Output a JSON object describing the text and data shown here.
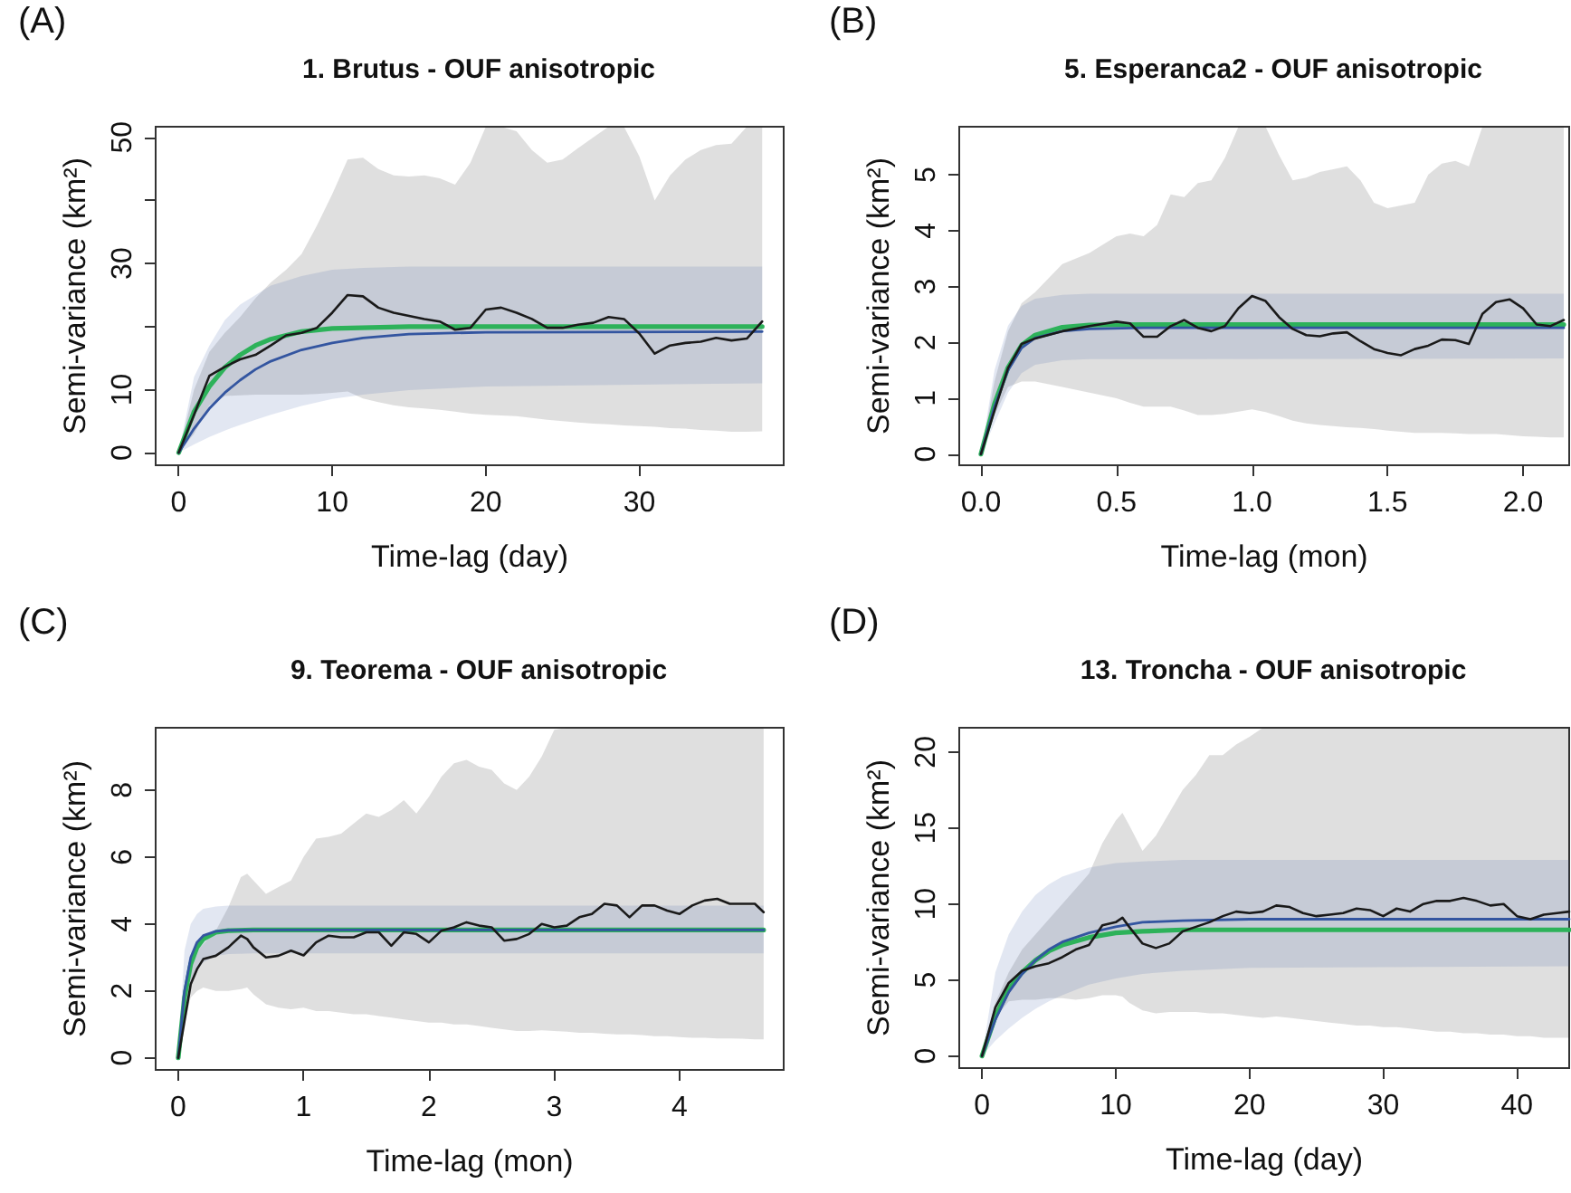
{
  "chart_data": [
    {
      "type": "line",
      "title": "1. Brutus - OUF anisotropic",
      "xlabel": "Time-lag (day)",
      "ylabel": "Semi-variance (km²)",
      "annotations": [
        "(A)"
      ],
      "marker": "none",
      "xlim": [
        -1.5,
        39.4
      ],
      "ylim": [
        -2,
        51.7
      ],
      "xticks": [
        0,
        10,
        20,
        30
      ],
      "yticks": [
        0,
        10,
        {
          "value": 20,
          "label": null
        },
        30,
        {
          "value": 40,
          "label": null
        },
        50
      ],
      "series": [
        {
          "color": "#1a1a1a",
          "x": [
            0,
            1,
            2,
            3,
            4,
            5,
            6,
            7,
            8,
            9,
            10,
            11,
            12,
            13,
            14,
            15,
            16,
            17,
            18,
            19,
            20,
            21,
            22,
            23,
            24,
            25,
            26,
            27,
            28,
            29,
            30,
            31,
            32,
            33,
            34,
            35,
            36,
            37,
            38
          ],
          "values": [
            0,
            6,
            12.2,
            13.6,
            14.8,
            15.5,
            17,
            18.6,
            19,
            19.8,
            22.2,
            25,
            24.8,
            23,
            22.2,
            21.7,
            21.2,
            20.8,
            19.5,
            19.8,
            22.7,
            23,
            22.2,
            21.2,
            19.8,
            19.8,
            20.3,
            20.6,
            21.5,
            21.2,
            18.9,
            15.7,
            17,
            17.4,
            17.6,
            18.2,
            17.8,
            18.1,
            20.8
          ],
          "lower": [
            0,
            3,
            7.5,
            9,
            9.1,
            9.2,
            9.2,
            9.2,
            9.2,
            9.3,
            9.5,
            9.7,
            8.6,
            8,
            7.5,
            7.2,
            7,
            6.8,
            6.5,
            6.2,
            6,
            5.9,
            5.8,
            5.5,
            5.2,
            5,
            4.8,
            4.6,
            4.5,
            4.3,
            4.2,
            4.1,
            3.9,
            3.8,
            3.6,
            3.5,
            3.3,
            3.3,
            3.4
          ],
          "upper": [
            0,
            10,
            16,
            19,
            21.5,
            24.5,
            27,
            29,
            31.5,
            36,
            41,
            46.5,
            46.8,
            45,
            44,
            43.8,
            44,
            43.5,
            42.5,
            46,
            51.7,
            51.7,
            51,
            48,
            46,
            46.5,
            48.3,
            50,
            51.7,
            51.7,
            47,
            40,
            44,
            46.5,
            48,
            48.8,
            49,
            51.7,
            51.7
          ]
        },
        {
          "color": "#2db25a",
          "x": [
            0,
            1,
            2,
            3,
            4,
            5,
            6,
            8,
            10,
            15,
            38
          ],
          "values": [
            0,
            6.5,
            10.5,
            13.5,
            15.5,
            17,
            18,
            19.2,
            19.7,
            20,
            20
          ]
        },
        {
          "color": "#3355a0",
          "x": [
            0,
            1,
            2,
            3,
            4,
            5,
            6,
            8,
            10,
            12,
            15,
            20,
            38
          ],
          "values": [
            0,
            3.8,
            7,
            9.5,
            11.5,
            13.2,
            14.5,
            16.3,
            17.4,
            18.2,
            18.8,
            19.1,
            19.2
          ],
          "lower": [
            0,
            1.3,
            2.5,
            3.5,
            4.4,
            5.2,
            6,
            7.4,
            8.5,
            9.2,
            9.9,
            10.5,
            11
          ],
          "upper": [
            0,
            12,
            17,
            21,
            23.5,
            25,
            26.5,
            28,
            29,
            29.3,
            29.5,
            29.5,
            29.5
          ]
        }
      ]
    },
    {
      "type": "line",
      "title": "5. Esperanca2 - OUF anisotropic",
      "xlabel": "Time-lag (mon)",
      "ylabel": "Semi-variance (km²)",
      "annotations": [
        "(B)"
      ],
      "marker": "none",
      "xlim": [
        -0.08,
        2.17
      ],
      "ylim": [
        -0.2,
        5.86
      ],
      "xticks": [
        {
          "value": 0,
          "label": "0.0"
        },
        0.5,
        {
          "value": 1,
          "label": "1.0"
        },
        1.5,
        {
          "value": 2,
          "label": "2.0"
        }
      ],
      "yticks": [
        0,
        1,
        2,
        3,
        4,
        5
      ],
      "series": [
        {
          "color": "#1a1a1a",
          "x": [
            0,
            0.05,
            0.1,
            0.15,
            0.2,
            0.3,
            0.4,
            0.5,
            0.55,
            0.6,
            0.65,
            0.7,
            0.75,
            0.8,
            0.85,
            0.9,
            0.95,
            1,
            1.05,
            1.1,
            1.15,
            1.2,
            1.25,
            1.3,
            1.35,
            1.4,
            1.45,
            1.5,
            1.55,
            1.6,
            1.65,
            1.7,
            1.75,
            1.8,
            1.85,
            1.9,
            1.95,
            2,
            2.05,
            2.1,
            2.15
          ],
          "values": [
            0,
            0.78,
            1.54,
            1.97,
            2.07,
            2.2,
            2.29,
            2.37,
            2.34,
            2.1,
            2.1,
            2.29,
            2.4,
            2.26,
            2.2,
            2.29,
            2.61,
            2.83,
            2.74,
            2.45,
            2.24,
            2.13,
            2.11,
            2.16,
            2.18,
            2.02,
            1.88,
            1.81,
            1.77,
            1.88,
            1.94,
            2.05,
            2.04,
            1.97,
            2.51,
            2.72,
            2.77,
            2.61,
            2.32,
            2.29,
            2.4
          ],
          "lower": [
            0,
            0.7,
            1.2,
            1.3,
            1.3,
            1.2,
            1.1,
            1.0,
            0.92,
            0.85,
            0.85,
            0.85,
            0.78,
            0.7,
            0.7,
            0.72,
            0.76,
            0.8,
            0.75,
            0.68,
            0.6,
            0.55,
            0.52,
            0.5,
            0.48,
            0.47,
            0.45,
            0.42,
            0.4,
            0.38,
            0.38,
            0.38,
            0.37,
            0.36,
            0.36,
            0.36,
            0.34,
            0.32,
            0.31,
            0.3,
            0.3
          ],
          "upper": [
            0,
            1.3,
            2.2,
            2.7,
            2.9,
            3.4,
            3.6,
            3.9,
            3.95,
            3.9,
            4.1,
            4.65,
            4.6,
            4.85,
            4.9,
            5.3,
            5.86,
            5.86,
            5.86,
            5.35,
            4.9,
            4.95,
            5.05,
            5.1,
            5.15,
            4.9,
            4.5,
            4.4,
            4.45,
            4.5,
            5.0,
            5.2,
            5.25,
            5.15,
            5.86,
            5.86,
            5.86,
            5.86,
            5.86,
            5.86,
            5.86
          ]
        },
        {
          "color": "#2db25a",
          "x": [
            0,
            0.05,
            0.1,
            0.15,
            0.2,
            0.3,
            0.4,
            0.6,
            2.15
          ],
          "values": [
            0,
            0.9,
            1.55,
            1.95,
            2.13,
            2.27,
            2.31,
            2.32,
            2.32
          ]
        },
        {
          "color": "#3355a0",
          "x": [
            0,
            0.05,
            0.1,
            0.15,
            0.2,
            0.3,
            0.4,
            0.6,
            2.15
          ],
          "values": [
            0,
            0.85,
            1.5,
            1.9,
            2.08,
            2.2,
            2.24,
            2.26,
            2.26
          ],
          "lower": [
            0,
            0.55,
            1.1,
            1.45,
            1.6,
            1.68,
            1.7,
            1.7,
            1.71
          ],
          "upper": [
            0,
            1.5,
            2.3,
            2.65,
            2.78,
            2.85,
            2.87,
            2.87,
            2.87
          ]
        }
      ]
    },
    {
      "type": "line",
      "title": "9. Teorema - OUF anisotropic",
      "xlabel": "Time-lag (mon)",
      "ylabel": "Semi-variance (km²)",
      "annotations": [
        "(C)"
      ],
      "marker": "none",
      "xlim": [
        -0.18,
        4.83
      ],
      "ylim": [
        -0.36,
        9.86
      ],
      "xticks": [
        0,
        1,
        2,
        3,
        4
      ],
      "yticks": [
        0,
        2,
        4,
        6,
        8
      ],
      "series": [
        {
          "color": "#1a1a1a",
          "x": [
            0,
            0.05,
            0.1,
            0.15,
            0.2,
            0.3,
            0.4,
            0.5,
            0.55,
            0.6,
            0.7,
            0.8,
            0.9,
            1,
            1.1,
            1.2,
            1.3,
            1.4,
            1.5,
            1.6,
            1.7,
            1.8,
            1.9,
            2,
            2.1,
            2.2,
            2.3,
            2.4,
            2.5,
            2.6,
            2.7,
            2.8,
            2.9,
            3,
            3.1,
            3.2,
            3.3,
            3.4,
            3.5,
            3.6,
            3.7,
            3.8,
            3.9,
            4,
            4.1,
            4.2,
            4.3,
            4.4,
            4.5,
            4.6,
            4.67
          ],
          "values": [
            0,
            1.1,
            2.2,
            2.65,
            2.95,
            3.05,
            3.3,
            3.65,
            3.55,
            3.3,
            3.0,
            3.05,
            3.2,
            3.06,
            3.45,
            3.65,
            3.6,
            3.6,
            3.75,
            3.75,
            3.35,
            3.75,
            3.7,
            3.45,
            3.8,
            3.9,
            4.05,
            3.95,
            3.9,
            3.5,
            3.55,
            3.7,
            4.0,
            3.9,
            3.95,
            4.2,
            4.3,
            4.6,
            4.55,
            4.2,
            4.55,
            4.55,
            4.4,
            4.3,
            4.55,
            4.7,
            4.75,
            4.6,
            4.6,
            4.6,
            4.35
          ],
          "lower": [
            0,
            1.0,
            1.8,
            2.0,
            2.1,
            2.0,
            2.0,
            2.05,
            2.1,
            1.9,
            1.6,
            1.5,
            1.45,
            1.5,
            1.4,
            1.4,
            1.35,
            1.3,
            1.3,
            1.25,
            1.2,
            1.15,
            1.1,
            1.05,
            1.05,
            1.0,
            1.0,
            0.95,
            0.9,
            0.85,
            0.8,
            0.8,
            0.82,
            0.8,
            0.78,
            0.75,
            0.75,
            0.72,
            0.7,
            0.7,
            0.68,
            0.65,
            0.65,
            0.62,
            0.6,
            0.6,
            0.58,
            0.58,
            0.57,
            0.55,
            0.55
          ],
          "upper": [
            0,
            1.5,
            2.6,
            3.2,
            3.4,
            3.8,
            4.5,
            5.4,
            5.5,
            5.3,
            4.9,
            5.1,
            5.3,
            6.0,
            6.55,
            6.6,
            6.7,
            7.0,
            7.3,
            7.2,
            7.4,
            7.7,
            7.3,
            7.8,
            8.4,
            8.8,
            8.9,
            8.7,
            8.6,
            8.2,
            8.0,
            8.4,
            9.0,
            9.8,
            9.86,
            9.86,
            9.86,
            9.86,
            9.86,
            9.86,
            9.86,
            9.86,
            9.86,
            9.86,
            9.86,
            9.86,
            9.86,
            9.86,
            9.86,
            9.86,
            9.86
          ]
        },
        {
          "color": "#2db25a",
          "x": [
            0,
            0.05,
            0.1,
            0.15,
            0.2,
            0.3,
            0.4,
            0.6,
            4.67
          ],
          "values": [
            0,
            1.8,
            2.8,
            3.3,
            3.55,
            3.75,
            3.8,
            3.82,
            3.82
          ]
        },
        {
          "color": "#3355a0",
          "x": [
            0,
            0.05,
            0.1,
            0.15,
            0.2,
            0.3,
            0.4,
            0.6,
            4.67
          ],
          "values": [
            0,
            2.0,
            3.0,
            3.45,
            3.65,
            3.78,
            3.81,
            3.82,
            3.82
          ],
          "lower": [
            0,
            1.3,
            2.2,
            2.6,
            2.85,
            3.05,
            3.1,
            3.12,
            3.12
          ],
          "upper": [
            0,
            3.2,
            4.0,
            4.3,
            4.45,
            4.52,
            4.55,
            4.55,
            4.55
          ]
        }
      ]
    },
    {
      "type": "line",
      "title": "13. Troncha - OUF anisotropic",
      "xlabel": "Time-lag (day)",
      "ylabel": "Semi-variance (km²)",
      "annotations": [
        "(D)"
      ],
      "marker": "none",
      "xlim": [
        -1.7,
        43.9
      ],
      "ylim": [
        -0.8,
        21.6
      ],
      "xticks": [
        0,
        10,
        20,
        30,
        40
      ],
      "yticks": [
        0,
        5,
        10,
        15,
        20
      ],
      "series": [
        {
          "color": "#1a1a1a",
          "x": [
            0,
            1,
            2,
            3,
            4,
            5,
            6,
            7,
            8,
            9,
            10,
            10.5,
            11,
            12,
            13,
            14,
            15,
            16,
            17,
            18,
            19,
            20,
            21,
            22,
            23,
            24,
            25,
            26,
            27,
            28,
            29,
            30,
            31,
            32,
            33,
            34,
            35,
            36,
            37,
            38,
            39,
            40,
            41,
            42,
            43,
            43.9
          ],
          "values": [
            0,
            3.2,
            4.8,
            5.6,
            5.9,
            6.1,
            6.5,
            7.0,
            7.3,
            8.6,
            8.8,
            9.1,
            8.5,
            7.4,
            7.1,
            7.4,
            8.2,
            8.5,
            8.8,
            9.2,
            9.5,
            9.4,
            9.5,
            9.9,
            9.8,
            9.4,
            9.2,
            9.3,
            9.4,
            9.7,
            9.6,
            9.2,
            9.7,
            9.5,
            10,
            10.2,
            10.2,
            10.4,
            10.2,
            9.9,
            10,
            9.2,
            9.0,
            9.3,
            9.4,
            9.5
          ],
          "lower": [
            0,
            2.5,
            3.6,
            3.7,
            3.7,
            3.8,
            3.8,
            3.7,
            3.8,
            4.0,
            4.0,
            3.9,
            3.5,
            3.0,
            2.8,
            2.9,
            2.9,
            2.9,
            2.8,
            2.8,
            2.7,
            2.6,
            2.5,
            2.6,
            2.5,
            2.4,
            2.3,
            2.2,
            2.1,
            2.0,
            2.0,
            1.9,
            1.9,
            1.8,
            1.7,
            1.6,
            1.6,
            1.5,
            1.5,
            1.4,
            1.4,
            1.3,
            1.3,
            1.2,
            1.2,
            1.2
          ],
          "upper": [
            0,
            3.5,
            5.5,
            7,
            8,
            9,
            10,
            11,
            12,
            14,
            15.5,
            16,
            15.2,
            13.5,
            14.5,
            16,
            17.5,
            18.5,
            19.8,
            19.8,
            20.5,
            21.0,
            21.6,
            21.6,
            21.6,
            21.6,
            21.6,
            21.6,
            21.6,
            21.6,
            21.6,
            21.6,
            21.6,
            21.6,
            21.6,
            21.6,
            21.6,
            21.6,
            21.6,
            21.6,
            21.6,
            21.6,
            21.6,
            21.6,
            21.6,
            21.6
          ]
        },
        {
          "color": "#2db25a",
          "x": [
            0,
            1,
            2,
            3,
            4,
            5,
            6,
            8,
            10,
            12,
            15,
            43.9
          ],
          "values": [
            0,
            2.6,
            4.4,
            5.5,
            6.3,
            6.9,
            7.3,
            7.8,
            8.1,
            8.2,
            8.3,
            8.3
          ]
        },
        {
          "color": "#3355a0",
          "x": [
            0,
            1,
            2,
            3,
            4,
            5,
            6,
            8,
            10,
            12,
            15,
            20,
            43.9
          ],
          "values": [
            0,
            2.4,
            4.2,
            5.4,
            6.3,
            7.0,
            7.5,
            8.1,
            8.5,
            8.8,
            8.9,
            9.0,
            9.0
          ],
          "lower": [
            0,
            1.0,
            1.8,
            2.5,
            3.1,
            3.6,
            4.0,
            4.7,
            5.1,
            5.4,
            5.6,
            5.8,
            5.9
          ],
          "upper": [
            0,
            5.5,
            8.0,
            9.5,
            10.6,
            11.3,
            11.8,
            12.4,
            12.7,
            12.8,
            12.9,
            12.9,
            12.9
          ]
        }
      ]
    }
  ]
}
